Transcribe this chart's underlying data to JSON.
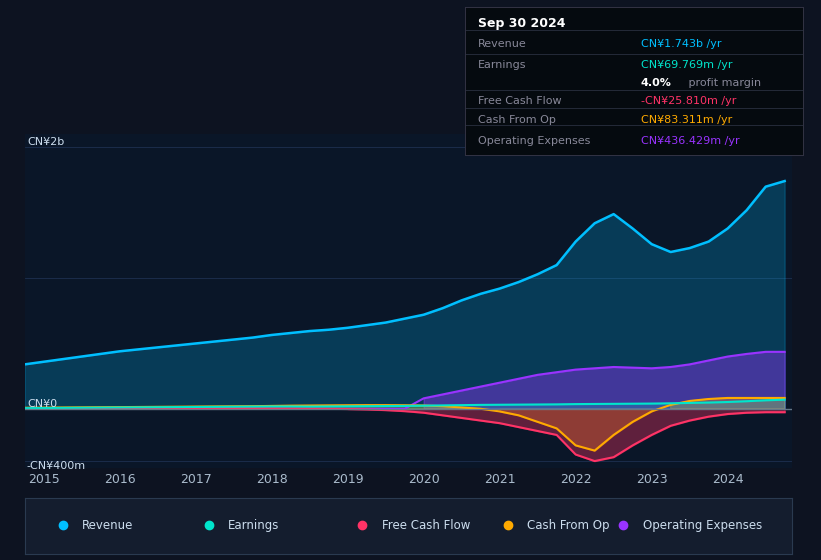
{
  "bg_color": "#0d1321",
  "chart_bg_color": "#0a1628",
  "legend_bg_color": "#141d2e",
  "infobox_bg_color": "#050a0f",
  "ylabel_top": "CN¥2b",
  "ylabel_zero": "CN¥0",
  "ylabel_bottom": "-CN¥400m",
  "x_ticks": [
    2015,
    2016,
    2017,
    2018,
    2019,
    2020,
    2021,
    2022,
    2023,
    2024
  ],
  "revenue_color": "#00bfff",
  "earnings_color": "#00e5cc",
  "fcf_color": "#ff3366",
  "cashfromop_color": "#ffaa00",
  "opex_color": "#9933ff",
  "legend_items": [
    "Revenue",
    "Earnings",
    "Free Cash Flow",
    "Cash From Op",
    "Operating Expenses"
  ],
  "legend_colors": [
    "#00bfff",
    "#00e5cc",
    "#ff3366",
    "#ffaa00",
    "#9933ff"
  ],
  "info_title": "Sep 30 2024",
  "info_rows": [
    {
      "label": "Revenue",
      "value": "CN¥1.743b /yr",
      "color": "#00bfff"
    },
    {
      "label": "Earnings",
      "value": "CN¥69.769m /yr",
      "color": "#00e5cc"
    },
    {
      "label": "",
      "value": "4.0% profit margin",
      "color": "margin"
    },
    {
      "label": "Free Cash Flow",
      "value": "-CN¥25.810m /yr",
      "color": "#ff3366"
    },
    {
      "label": "Cash From Op",
      "value": "CN¥83.311m /yr",
      "color": "#ffaa00"
    },
    {
      "label": "Operating Expenses",
      "value": "CN¥436.429m /yr",
      "color": "#9933ff"
    }
  ],
  "years": [
    2014.75,
    2015.0,
    2015.25,
    2015.5,
    2015.75,
    2016.0,
    2016.25,
    2016.5,
    2016.75,
    2017.0,
    2017.25,
    2017.5,
    2017.75,
    2018.0,
    2018.25,
    2018.5,
    2018.75,
    2019.0,
    2019.25,
    2019.5,
    2019.75,
    2020.0,
    2020.25,
    2020.5,
    2020.75,
    2021.0,
    2021.25,
    2021.5,
    2021.75,
    2022.0,
    2022.25,
    2022.5,
    2022.75,
    2023.0,
    2023.25,
    2023.5,
    2023.75,
    2024.0,
    2024.25,
    2024.5,
    2024.75
  ],
  "revenue": [
    340,
    360,
    380,
    400,
    420,
    440,
    455,
    470,
    485,
    500,
    515,
    530,
    545,
    565,
    580,
    595,
    605,
    620,
    640,
    660,
    690,
    720,
    770,
    830,
    880,
    920,
    970,
    1030,
    1100,
    1280,
    1420,
    1490,
    1380,
    1260,
    1200,
    1230,
    1280,
    1380,
    1520,
    1700,
    1743
  ],
  "earnings": [
    5,
    6,
    7,
    8,
    9,
    10,
    11,
    12,
    13,
    14,
    15,
    16,
    17,
    18,
    18,
    17,
    18,
    19,
    20,
    21,
    22,
    24,
    26,
    28,
    30,
    31,
    32,
    33,
    34,
    36,
    37,
    38,
    39,
    40,
    42,
    45,
    48,
    52,
    58,
    65,
    70
  ],
  "fcf": [
    4,
    5,
    5,
    5,
    5,
    5,
    5,
    4,
    4,
    5,
    5,
    5,
    4,
    3,
    2,
    1,
    0,
    -2,
    -5,
    -10,
    -18,
    -30,
    -50,
    -70,
    -90,
    -110,
    -140,
    -170,
    -200,
    -350,
    -400,
    -370,
    -280,
    -200,
    -130,
    -90,
    -60,
    -40,
    -30,
    -26,
    -26
  ],
  "cashfromop": [
    8,
    9,
    10,
    11,
    12,
    13,
    14,
    15,
    16,
    17,
    18,
    19,
    20,
    22,
    24,
    25,
    26,
    27,
    28,
    28,
    27,
    25,
    20,
    10,
    0,
    -20,
    -50,
    -100,
    -150,
    -280,
    -320,
    -200,
    -100,
    -20,
    30,
    60,
    75,
    83,
    83,
    83,
    83
  ],
  "opex": [
    0,
    0,
    0,
    0,
    0,
    0,
    0,
    0,
    0,
    0,
    0,
    0,
    0,
    0,
    0,
    0,
    0,
    0,
    0,
    0,
    0,
    80,
    110,
    140,
    170,
    200,
    230,
    260,
    280,
    300,
    310,
    320,
    315,
    310,
    320,
    340,
    370,
    400,
    420,
    436,
    436
  ]
}
